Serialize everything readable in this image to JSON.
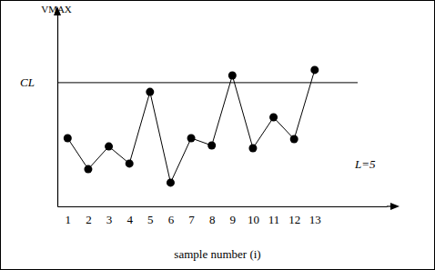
{
  "chart_data": {
    "type": "line",
    "y_label": "VMAX",
    "x_label": "sample number (i)",
    "x": [
      1,
      2,
      3,
      4,
      5,
      6,
      7,
      8,
      9,
      10,
      11,
      12,
      13
    ],
    "values": [
      35.4,
      19.3,
      31.1,
      22.2,
      59.4,
      12.3,
      35.4,
      31.6,
      67.9,
      30.2,
      46.2,
      34.9,
      70.8
    ],
    "color": "#000000",
    "marker": "circle",
    "line_style": "solid",
    "xlim": [
      0.5,
      16.5
    ],
    "xticks": [
      1,
      2,
      3,
      4,
      5,
      6,
      7,
      8,
      9,
      10,
      11,
      12,
      13
    ],
    "ylim": [
      0,
      100
    ],
    "tick_labels": "x",
    "grid": false,
    "control_limit": {
      "label": "CL",
      "value": 64.2
    },
    "annotations": [
      "L=5"
    ]
  }
}
